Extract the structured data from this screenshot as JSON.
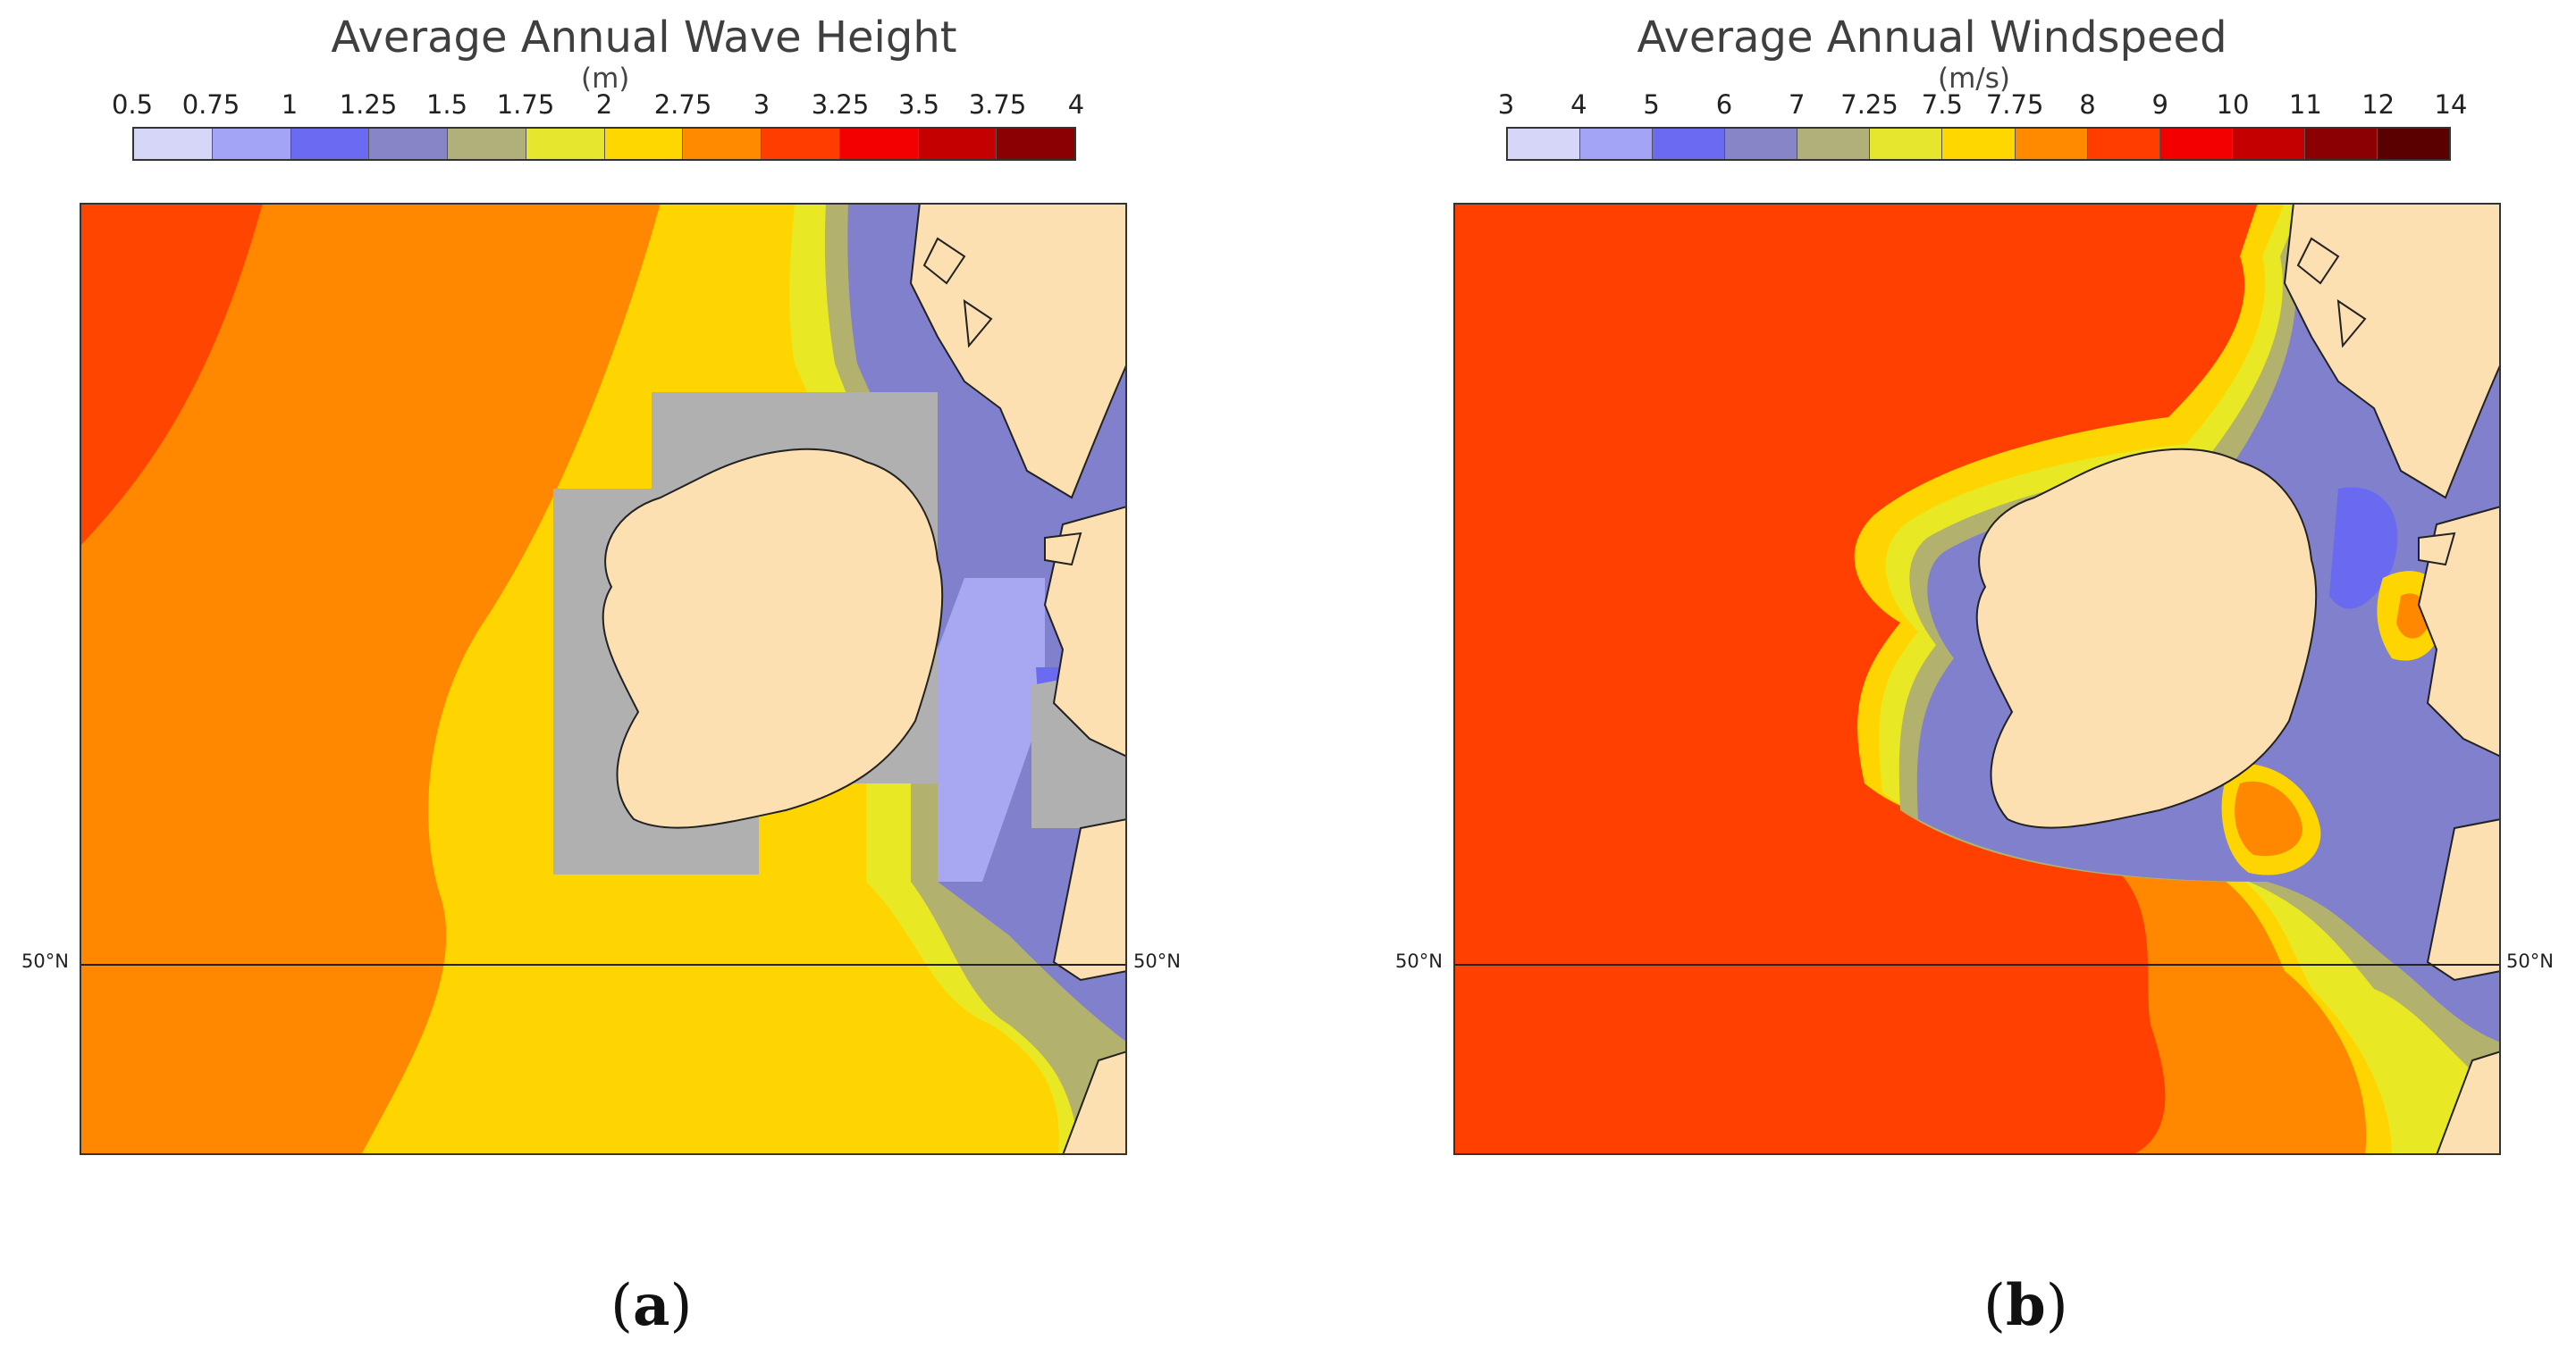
{
  "panel_a": {
    "title": "Average Annual Wave Height",
    "unit": "(m)",
    "colorbar_ticks": [
      "0.5",
      "0.75",
      "1",
      "1.25",
      "1.5",
      "1.75",
      "2",
      "2.75",
      "3",
      "3.25",
      "3.5",
      "3.75",
      "4"
    ],
    "colorbar_colors": [
      "#d6d6f8",
      "#a4a4f6",
      "#6b6bf2",
      "#8585c8",
      "#b0b07a",
      "#e6e62e",
      "#ffd700",
      "#ff8a00",
      "#ff3d00",
      "#f20000",
      "#c40000",
      "#8b0000"
    ],
    "lat_label_left": "50°N",
    "lat_label_right": "50°N",
    "caption_open": "(",
    "caption_letter": "a",
    "caption_close": ")",
    "colors": {
      "far": "#ff4500",
      "mid": "#ff8800",
      "near": "#ffd500",
      "shelf": "#e8e825",
      "olive": "#b2b26e",
      "blue": "#8080cc",
      "lightblue": "#a8a8f2",
      "grey": "#b0b0b0",
      "land": "#fde0b2"
    }
  },
  "panel_b": {
    "title": "Average Annual Windspeed",
    "unit": "(m/s)",
    "colorbar_ticks": [
      "3",
      "4",
      "5",
      "6",
      "7",
      "7.25",
      "7.5",
      "7.75",
      "8",
      "9",
      "10",
      "11",
      "12",
      "14"
    ],
    "colorbar_colors": [
      "#d6d6f8",
      "#a4a4f6",
      "#6b6bf2",
      "#8585c8",
      "#b0b07a",
      "#e6e62e",
      "#ffd700",
      "#ff8a00",
      "#ff3d00",
      "#f20000",
      "#c40000",
      "#8b0000",
      "#5a0000"
    ],
    "lat_label_left": "50°N",
    "lat_label_right": "50°N",
    "caption_open": "(",
    "caption_letter": "b",
    "caption_close": ")",
    "colors": {
      "far": "#ff4000",
      "mid": "#ff8800",
      "near": "#ffd500",
      "shelf": "#e8e825",
      "olive": "#b2b26e",
      "blue": "#8080cc",
      "lightblue": "#6a6af0",
      "land": "#fde0b2"
    }
  }
}
